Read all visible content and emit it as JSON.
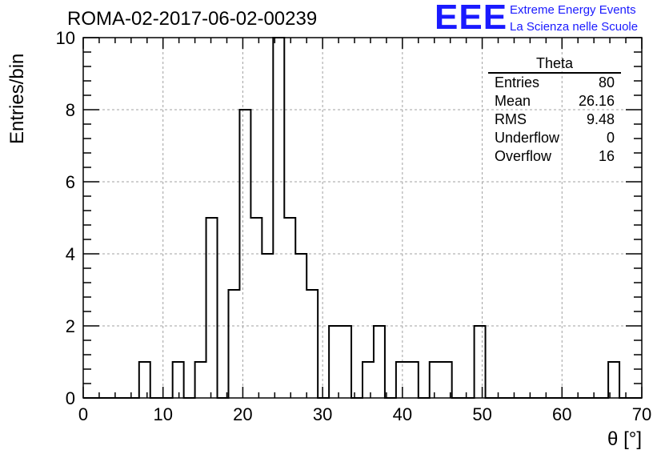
{
  "run_title": "ROMA-02-2017-06-02-00239",
  "logo": {
    "mark": "EEE",
    "line1": "Extreme Energy Events",
    "line2": "La Scienza nelle Scuole",
    "color": "#1a1aff"
  },
  "stats": {
    "title": "Theta",
    "rows": [
      {
        "label": "Entries",
        "value": "80"
      },
      {
        "label": "Mean",
        "value": "26.16"
      },
      {
        "label": "RMS",
        "value": "9.48"
      },
      {
        "label": "Underflow",
        "value": "0"
      },
      {
        "label": "Overflow",
        "value": "16"
      }
    ]
  },
  "chart_data": {
    "type": "histogram",
    "xlabel": "θ [°]",
    "ylabel": "Entries/bin",
    "xlim": [
      0,
      70
    ],
    "ylim": [
      0,
      10
    ],
    "x_ticks": [
      0,
      10,
      20,
      30,
      40,
      50,
      60,
      70
    ],
    "y_ticks": [
      0,
      2,
      4,
      6,
      8,
      10
    ],
    "grid": true,
    "bin_width": 1.4,
    "bin_edges_start": 0,
    "values": [
      0,
      0,
      0,
      0,
      0,
      1,
      0,
      0,
      1,
      0,
      1,
      5,
      0,
      3,
      8,
      5,
      4,
      10,
      5,
      4,
      3,
      0,
      2,
      2,
      0,
      1,
      2,
      0,
      1,
      1,
      0,
      1,
      1,
      0,
      0,
      2,
      0,
      0,
      0,
      0,
      0,
      0,
      0,
      0,
      0,
      0,
      0,
      1,
      0,
      0
    ]
  }
}
